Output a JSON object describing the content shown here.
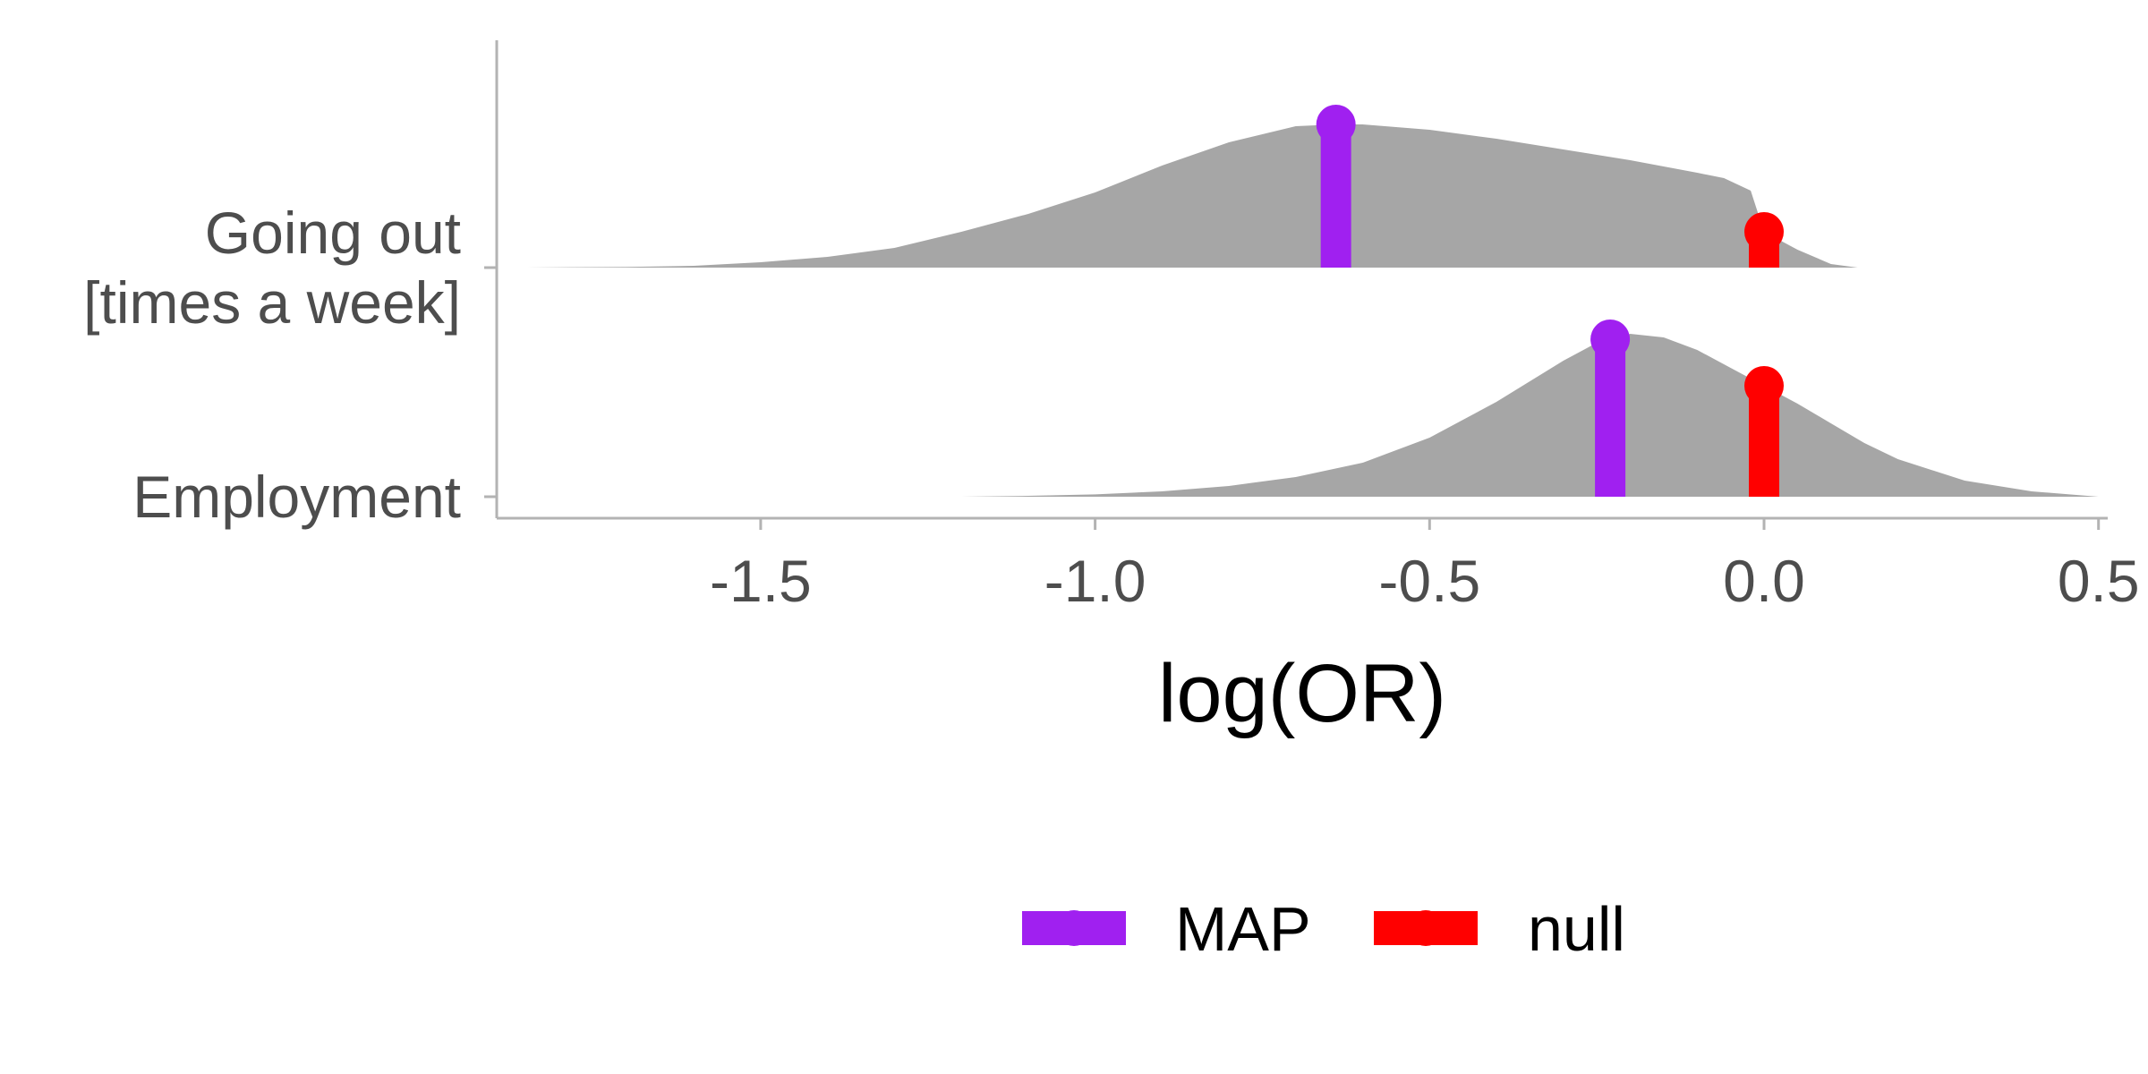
{
  "chart_data": {
    "type": "density-ridge",
    "title": "",
    "xlabel": "log(OR)",
    "ylabel": "",
    "xlim": [
      -1.99,
      0.51
    ],
    "x_ticks": [
      -1.5,
      -1.0,
      -0.5,
      0.0,
      0.5
    ],
    "x_tick_labels": [
      "-1.5",
      "-1.0",
      "-0.5",
      "0.0",
      "0.5"
    ],
    "categories": [
      "Employment",
      "Going out\n[times a week]"
    ],
    "category_lines": [
      [
        "Employment"
      ],
      [
        "Going out",
        "[times a week]"
      ]
    ],
    "series": [
      {
        "category": "Employment",
        "density_x": [
          -1.2,
          -1.1,
          -1.0,
          -0.9,
          -0.8,
          -0.7,
          -0.6,
          -0.5,
          -0.4,
          -0.3,
          -0.25,
          -0.2,
          -0.15,
          -0.1,
          -0.05,
          0.0,
          0.05,
          0.1,
          0.15,
          0.2,
          0.3,
          0.4,
          0.5
        ],
        "density_y": [
          0.0,
          0.005,
          0.013,
          0.03,
          0.06,
          0.11,
          0.19,
          0.33,
          0.53,
          0.76,
          0.86,
          0.91,
          0.89,
          0.82,
          0.72,
          0.62,
          0.52,
          0.41,
          0.3,
          0.21,
          0.09,
          0.03,
          0.0
        ],
        "map": -0.23,
        "map_density": 0.88,
        "null": 0.0,
        "null_density": 0.62
      },
      {
        "category": "Going out\n[times a week]",
        "density_x": [
          -1.85,
          -1.7,
          -1.6,
          -1.5,
          -1.4,
          -1.3,
          -1.2,
          -1.1,
          -1.0,
          -0.9,
          -0.8,
          -0.7,
          -0.64,
          -0.6,
          -0.5,
          -0.4,
          -0.3,
          -0.2,
          -0.1,
          -0.06,
          -0.02,
          0.0,
          0.05,
          0.1,
          0.14
        ],
        "density_y": [
          0.0,
          0.004,
          0.01,
          0.03,
          0.06,
          0.11,
          0.2,
          0.3,
          0.42,
          0.57,
          0.7,
          0.79,
          0.8,
          0.8,
          0.77,
          0.72,
          0.66,
          0.6,
          0.53,
          0.5,
          0.43,
          0.2,
          0.1,
          0.02,
          0.0
        ],
        "map": -0.64,
        "map_density": 0.8,
        "null": 0.0,
        "null_density": 0.2
      }
    ],
    "legend": {
      "position": "bottom",
      "items": [
        {
          "label": "MAP",
          "color": "#A020F0"
        },
        {
          "label": "null",
          "color": "#FF0000"
        }
      ]
    },
    "colors": {
      "density_fill": "#A6A6A6",
      "map": "#A020F0",
      "null": "#FF0000",
      "axis": "#b3b3b3",
      "tick_text": "#4d4d4d"
    },
    "grid": false
  }
}
